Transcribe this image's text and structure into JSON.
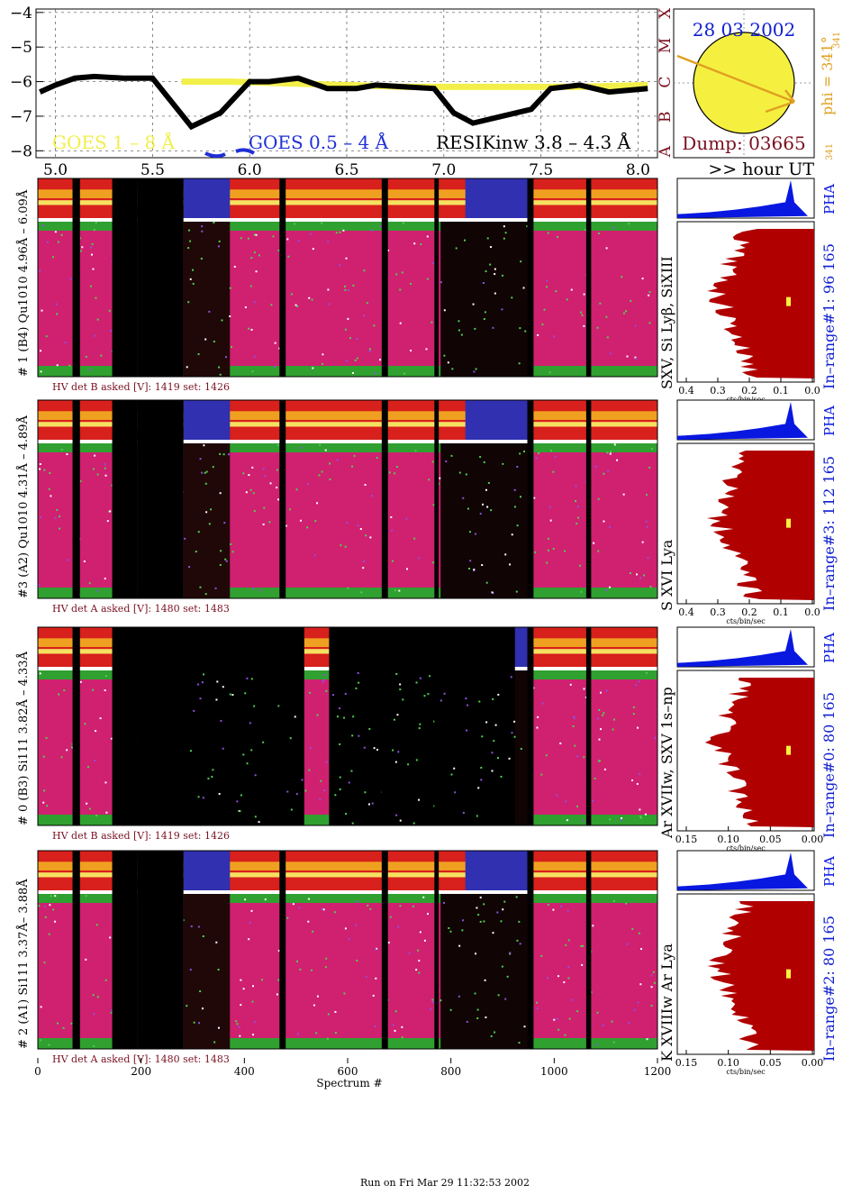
{
  "header": {
    "date": "28 03 2002",
    "phi_label": "phi = 341°",
    "phi_sub": "341",
    "phi_sub2": "341",
    "dump": "Dump: 03665",
    "hour_label": ">> hour UT",
    "run_footer": "Run on Fri Mar 29 11:32:53 2002"
  },
  "goes": {
    "legend_goes18": "GOES 1 – 8 Å",
    "legend_goes054": "GOES 0.5 – 4 Å",
    "legend_resik": "RESIKinw 3.8 – 4.3 Å",
    "yticks": [
      "−4",
      "−5",
      "−6",
      "−7",
      "−8"
    ],
    "xticks": [
      "5.0",
      "5.5",
      "6.0",
      "6.5",
      "7.0",
      "7.5",
      "8.0"
    ],
    "classes": [
      "X",
      "M",
      "C",
      "B",
      "A"
    ]
  },
  "colors": {
    "goes_yellow": "#f2ef4a",
    "goes_blue": "#1f2fd6",
    "maroon": "#7a1020",
    "orange": "#e0a020",
    "hist_red": "#b00000",
    "pha_blue": "#0818e0",
    "title_blue": "#1020d0"
  },
  "panels": [
    {
      "label": "# 1 (B4) Qu1010 4.96Å – 6.09Å",
      "ions": "SXV, Si Lyβ, SiXIII",
      "range": "In–range#1:  96 165",
      "hv": "HV det B asked [V]:  1419  set:  1426",
      "pha": "PHA",
      "xticks": [
        "0.4",
        "0.3",
        "0.2",
        "0.1",
        "0.0"
      ],
      "xunit": "cts/bin/sec"
    },
    {
      "label": "#3 (A2) Qu1010  4.31Å – 4.89Å",
      "ions": "S XVI Lya",
      "range": "In–range#3:  112 165",
      "hv": "HV det A asked [V]:  1480  set:  1483",
      "pha": "PHA",
      "xticks": [
        "0.4",
        "0.3",
        "0.2",
        "0.1",
        "0.0"
      ],
      "xunit": "cts/bin/sec"
    },
    {
      "label": "# 0 (B3) Si111  3.82Å – 4.33Å",
      "ions": "Ar XVIIw,  SXV 1s–np",
      "range": "In–range#0:  80 165",
      "hv": "HV det B asked [V]:  1419  set:  1426",
      "pha": "PHA",
      "xticks": [
        "0.15",
        "0.10",
        "0.05",
        "0.00"
      ],
      "xunit": "cts/bin/sec"
    },
    {
      "label": "# 2 (A1) Si111  3.37Å– 3.88Å",
      "ions": "K XVIIIw  Ar Lya",
      "range": "In–range#2:  80 165",
      "hv": "HV det A asked [V]:  1480  set:  1483",
      "pha": "PHA",
      "xticks": [
        "0.15",
        "0.10",
        "0.05",
        "0.00"
      ],
      "xunit": "cts/bin/sec"
    }
  ],
  "spectrum_axis": {
    "xticks": [
      "0",
      "200",
      "400",
      "600",
      "800",
      "1000",
      "1200"
    ],
    "xlabel": "Spectrum #"
  },
  "chart_data": {
    "type": "line",
    "title": "",
    "xlabel": "",
    "ylabel": "",
    "xlim": [
      4.9,
      8.1
    ],
    "ylim": [
      -8.2,
      -3.9
    ],
    "series": [
      {
        "name": "GOES 1 – 8 Å",
        "x": [
          5.65,
          5.9,
          6.2,
          6.5,
          6.8,
          7.1,
          7.4,
          7.7,
          8.05
        ],
        "values": [
          -6.0,
          -6.0,
          -6.05,
          -6.1,
          -6.15,
          -6.15,
          -6.15,
          -6.15,
          -6.1
        ]
      },
      {
        "name": "RESIKinw 3.8 – 4.3 Å",
        "x": [
          4.92,
          5.0,
          5.1,
          5.2,
          5.35,
          5.5,
          5.7,
          5.85,
          6.0,
          6.1,
          6.25,
          6.4,
          6.55,
          6.65,
          6.8,
          6.95,
          7.05,
          7.15,
          7.3,
          7.45,
          7.55,
          7.7,
          7.85,
          8.05
        ],
        "values": [
          -6.3,
          -6.1,
          -5.9,
          -5.85,
          -5.9,
          -5.9,
          -7.3,
          -6.9,
          -6.0,
          -6.0,
          -5.9,
          -6.2,
          -6.2,
          -6.1,
          -6.15,
          -6.2,
          -6.9,
          -7.2,
          -7.0,
          -6.8,
          -6.2,
          -6.1,
          -6.3,
          -6.2
        ]
      }
    ]
  }
}
